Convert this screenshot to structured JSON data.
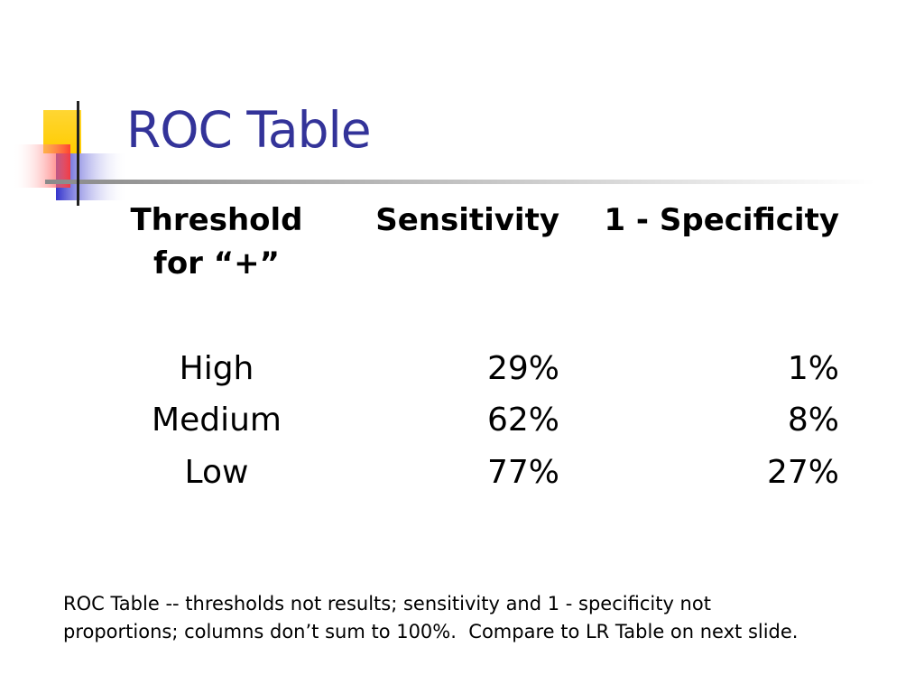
{
  "slide": {
    "title": "ROC Table",
    "accent_color": "#333399"
  },
  "table": {
    "headers": {
      "threshold_line1": "Threshold",
      "threshold_line2": "for “+”",
      "sensitivity": "Sensitivity",
      "specificity": "1 - Specificity"
    },
    "rows": [
      {
        "threshold": "High",
        "sensitivity": "29%",
        "specificity": "1%"
      },
      {
        "threshold": "Medium",
        "sensitivity": "62%",
        "specificity": "8%"
      },
      {
        "threshold": "Low",
        "sensitivity": "77%",
        "specificity": "27%"
      }
    ]
  },
  "footnote": {
    "line1": "ROC Table -- thresholds not results; sensitivity and 1 - specificity not",
    "line2": "proportions; columns don’t sum to 100%.  Compare to LR Table on next slide."
  }
}
